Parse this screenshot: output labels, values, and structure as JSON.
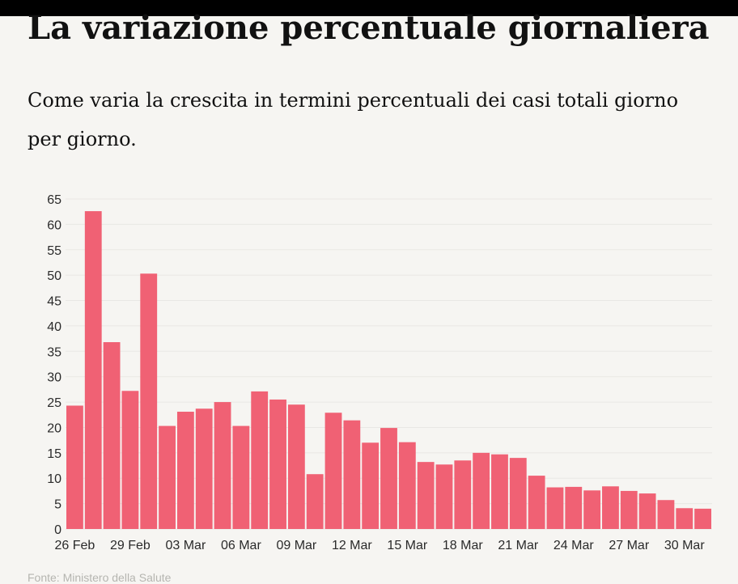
{
  "title": "La variazione percentuale giornaliera",
  "subtitle": "Come varia la crescita in termini percentuali dei casi totali giorno per giorno.",
  "source": "Fonte: Ministero della Salute",
  "colors": {
    "bar": "#f06174",
    "grid": "#e9e8e4",
    "background": "#f6f5f2"
  },
  "chart_data": {
    "type": "bar",
    "categories": [
      "26 Feb",
      "27 Feb",
      "28 Feb",
      "29 Feb",
      "01 Mar",
      "02 Mar",
      "03 Mar",
      "04 Mar",
      "05 Mar",
      "06 Mar",
      "07 Mar",
      "08 Mar",
      "09 Mar",
      "10 Mar",
      "11 Mar",
      "12 Mar",
      "13 Mar",
      "14 Mar",
      "15 Mar",
      "16 Mar",
      "17 Mar",
      "18 Mar",
      "19 Mar",
      "20 Mar",
      "21 Mar",
      "22 Mar",
      "23 Mar",
      "24 Mar",
      "25 Mar",
      "26 Mar",
      "27 Mar",
      "28 Mar",
      "29 Mar",
      "30 Mar",
      "31 Mar"
    ],
    "values": [
      24.3,
      62.6,
      36.8,
      27.2,
      50.3,
      20.3,
      23.1,
      23.7,
      25.0,
      20.3,
      27.1,
      25.5,
      24.5,
      10.8,
      22.9,
      21.4,
      17.0,
      19.9,
      17.1,
      13.2,
      12.7,
      13.5,
      15.0,
      14.7,
      14.0,
      10.5,
      8.2,
      8.3,
      7.6,
      8.4,
      7.5,
      7.0,
      5.7,
      4.1,
      4.0
    ],
    "xticks": [
      "26 Feb",
      "29 Feb",
      "03 Mar",
      "06 Mar",
      "09 Mar",
      "12 Mar",
      "15 Mar",
      "18 Mar",
      "21 Mar",
      "24 Mar",
      "27 Mar",
      "30 Mar"
    ],
    "yticks": [
      0,
      5,
      10,
      15,
      20,
      25,
      30,
      35,
      40,
      45,
      50,
      55,
      60,
      65
    ],
    "ylim": [
      0,
      65
    ],
    "grid": true,
    "xlabel": "",
    "ylabel": ""
  }
}
